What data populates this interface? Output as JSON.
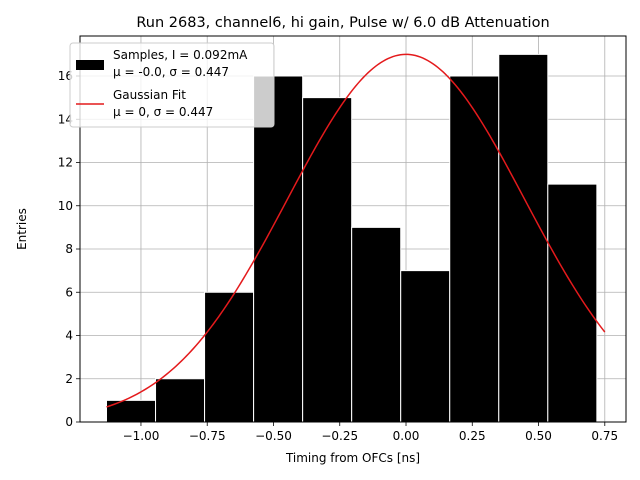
{
  "chart_data": {
    "type": "bar",
    "title": "Run 2683, channel6, hi gain, Pulse w/ 6.0 dB Attenuation",
    "xlabel": "Timing from OFCs [ns]",
    "ylabel": "Entries",
    "xlim": [
      -1.23,
      0.83
    ],
    "ylim": [
      0,
      17.85
    ],
    "xticks": [
      -1.0,
      -0.75,
      -0.5,
      -0.25,
      0.0,
      0.25,
      0.5,
      0.75
    ],
    "xtick_labels": [
      "−1.00",
      "−0.75",
      "−0.50",
      "−0.25",
      "0.00",
      "0.25",
      "0.50",
      "0.75"
    ],
    "yticks": [
      0,
      2,
      4,
      6,
      8,
      10,
      12,
      14,
      16
    ],
    "ytick_labels": [
      "0",
      "2",
      "4",
      "6",
      "8",
      "10",
      "12",
      "14",
      "16"
    ],
    "grid": true,
    "legend_position": "top-left",
    "series": [
      {
        "kind": "histogram",
        "legend_line1": "Samples, I = 0.092mA",
        "legend_line2": "μ = -0.0, σ = 0.447",
        "bin_edges": [
          -1.13,
          -0.945,
          -0.76,
          -0.575,
          -0.39,
          -0.205,
          -0.02,
          0.165,
          0.35,
          0.535,
          0.72
        ],
        "values": [
          1,
          2,
          6,
          16,
          15,
          9,
          7,
          16,
          17,
          11
        ],
        "color": "#000000",
        "edgecolor": "#ffffff"
      },
      {
        "kind": "line",
        "legend_line1": "Gaussian Fit",
        "legend_line2": "μ = 0, σ = 0.447",
        "mu": 0,
        "sigma": 0.447,
        "amplitude": 17,
        "x_range": [
          -1.13,
          0.75
        ],
        "color": "#e41a1c"
      }
    ]
  }
}
